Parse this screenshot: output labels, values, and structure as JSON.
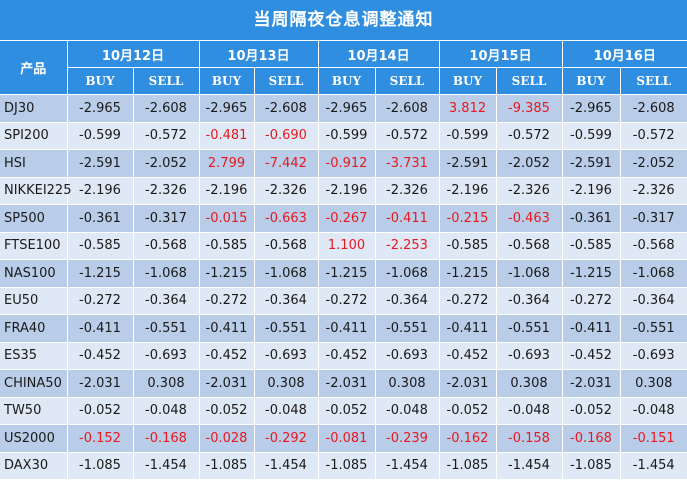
{
  "title": "当周隔夜仓息调整通知",
  "header": {
    "product_label": "产品",
    "dates": [
      "10月12日",
      "10月13日",
      "10月14日",
      "10月15日",
      "10月16日"
    ],
    "buy_label": "BUY",
    "sell_label": "SELL"
  },
  "colors": {
    "header_bg": "#2f8ee0",
    "row_dark": "#b9cde9",
    "row_light": "#dfe8f5",
    "highlight": "#e8181e"
  },
  "rows": [
    {
      "name": "DJ30",
      "values": [
        "-2.965",
        "-2.608",
        "-2.965",
        "-2.608",
        "-2.965",
        "-2.608",
        "3.812",
        "-9.385",
        "-2.965",
        "-2.608"
      ],
      "red": [
        6,
        7
      ]
    },
    {
      "name": "SPI200",
      "values": [
        "-0.599",
        "-0.572",
        "-0.481",
        "-0.690",
        "-0.599",
        "-0.572",
        "-0.599",
        "-0.572",
        "-0.599",
        "-0.572"
      ],
      "red": [
        2,
        3
      ]
    },
    {
      "name": "HSI",
      "values": [
        "-2.591",
        "-2.052",
        "2.799",
        "-7.442",
        "-0.912",
        "-3.731",
        "-2.591",
        "-2.052",
        "-2.591",
        "-2.052"
      ],
      "red": [
        2,
        3,
        4,
        5
      ]
    },
    {
      "name": "NIKKEI225",
      "values": [
        "-2.196",
        "-2.326",
        "-2.196",
        "-2.326",
        "-2.196",
        "-2.326",
        "-2.196",
        "-2.326",
        "-2.196",
        "-2.326"
      ],
      "red": []
    },
    {
      "name": "SP500",
      "values": [
        "-0.361",
        "-0.317",
        "-0.015",
        "-0.663",
        "-0.267",
        "-0.411",
        "-0.215",
        "-0.463",
        "-0.361",
        "-0.317"
      ],
      "red": [
        2,
        3,
        4,
        5,
        6,
        7
      ]
    },
    {
      "name": "FTSE100",
      "values": [
        "-0.585",
        "-0.568",
        "-0.585",
        "-0.568",
        "1.100",
        "-2.253",
        "-0.585",
        "-0.568",
        "-0.585",
        "-0.568"
      ],
      "red": [
        4,
        5
      ]
    },
    {
      "name": "NAS100",
      "values": [
        "-1.215",
        "-1.068",
        "-1.215",
        "-1.068",
        "-1.215",
        "-1.068",
        "-1.215",
        "-1.068",
        "-1.215",
        "-1.068"
      ],
      "red": []
    },
    {
      "name": "EU50",
      "values": [
        "-0.272",
        "-0.364",
        "-0.272",
        "-0.364",
        "-0.272",
        "-0.364",
        "-0.272",
        "-0.364",
        "-0.272",
        "-0.364"
      ],
      "red": []
    },
    {
      "name": "FRA40",
      "values": [
        "-0.411",
        "-0.551",
        "-0.411",
        "-0.551",
        "-0.411",
        "-0.551",
        "-0.411",
        "-0.551",
        "-0.411",
        "-0.551"
      ],
      "red": []
    },
    {
      "name": "ES35",
      "values": [
        "-0.452",
        "-0.693",
        "-0.452",
        "-0.693",
        "-0.452",
        "-0.693",
        "-0.452",
        "-0.693",
        "-0.452",
        "-0.693"
      ],
      "red": []
    },
    {
      "name": "CHINA50",
      "values": [
        "-2.031",
        "0.308",
        "-2.031",
        "0.308",
        "-2.031",
        "0.308",
        "-2.031",
        "0.308",
        "-2.031",
        "0.308"
      ],
      "red": []
    },
    {
      "name": "TW50",
      "values": [
        "-0.052",
        "-0.048",
        "-0.052",
        "-0.048",
        "-0.052",
        "-0.048",
        "-0.052",
        "-0.048",
        "-0.052",
        "-0.048"
      ],
      "red": []
    },
    {
      "name": "US2000",
      "values": [
        "-0.152",
        "-0.168",
        "-0.028",
        "-0.292",
        "-0.081",
        "-0.239",
        "-0.162",
        "-0.158",
        "-0.168",
        "-0.151"
      ],
      "red": [
        0,
        1,
        2,
        3,
        4,
        5,
        6,
        7,
        8,
        9
      ]
    },
    {
      "name": "DAX30",
      "values": [
        "-1.085",
        "-1.454",
        "-1.085",
        "-1.454",
        "-1.085",
        "-1.454",
        "-1.085",
        "-1.454",
        "-1.085",
        "-1.454"
      ],
      "red": []
    }
  ]
}
